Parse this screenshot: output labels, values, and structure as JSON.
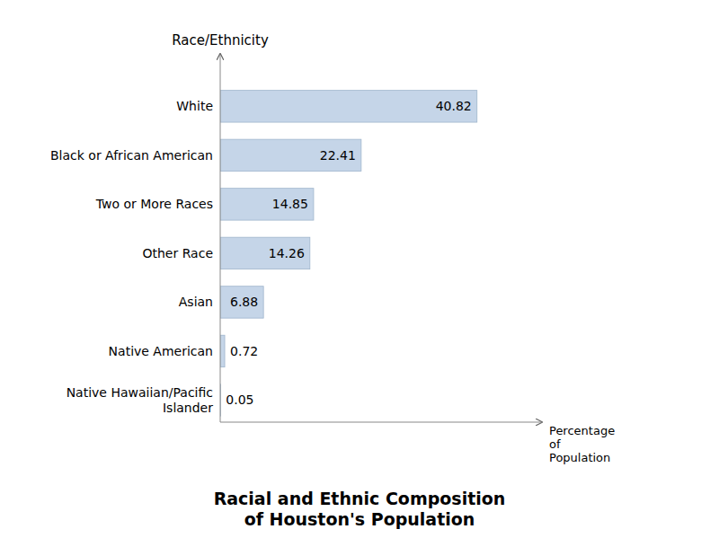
{
  "chart_data": {
    "type": "bar",
    "orientation": "horizontal",
    "title": "Racial and Ethnic Composition\nof Houston's Population",
    "x_label": "Percentage\nof\nPopulation",
    "y_label": "Race/Ethnicity",
    "categories": [
      "White",
      "Black or African American",
      "Two or More Races",
      "Other Race",
      "Asian",
      "Native American",
      "Native Hawaiian/Pacific\nIslander"
    ],
    "values": [
      40.82,
      22.41,
      14.85,
      14.26,
      6.88,
      0.72,
      0.05
    ],
    "color": "#c5d5e8",
    "xlim": [
      0,
      50
    ],
    "grid": false,
    "data_labels": true,
    "tick_labels": "y"
  }
}
